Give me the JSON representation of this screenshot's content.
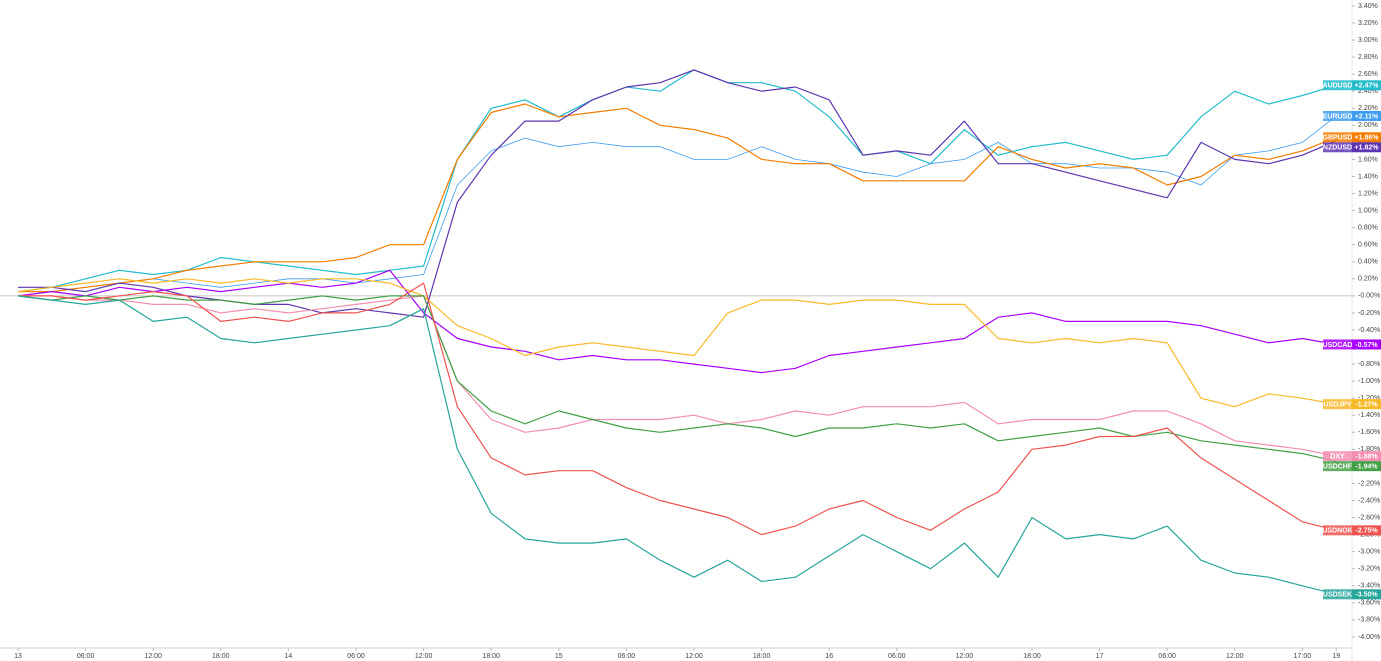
{
  "chart_data": {
    "type": "line",
    "categories": [
      "13",
      null,
      "06:00",
      null,
      "12:00",
      null,
      "18:00",
      null,
      "14",
      null,
      "06:00",
      null,
      "12:00",
      null,
      "18:00",
      null,
      "15",
      null,
      "06:00",
      null,
      "12:00",
      null,
      "18:00",
      null,
      "16",
      null,
      "06:00",
      null,
      "12:00",
      null,
      "18:00",
      null,
      "17",
      null,
      "06:00",
      null,
      "12:00",
      null,
      "17:00",
      "19"
    ],
    "ylim": [
      -4.13,
      3.47
    ],
    "yticks": [
      {
        "value": 3.4,
        "label": "3.40%"
      },
      {
        "value": 3.2,
        "label": "3.20%"
      },
      {
        "value": 3.0,
        "label": "3.00%"
      },
      {
        "value": 2.8,
        "label": "2.80%"
      },
      {
        "value": 2.6,
        "label": "2.60%"
      },
      {
        "value": 2.4,
        "label": "2.40%"
      },
      {
        "value": 2.2,
        "label": "2.20%"
      },
      {
        "value": 2.0,
        "label": "2.00%"
      },
      {
        "value": 1.8,
        "label": "1.80%"
      },
      {
        "value": 1.6,
        "label": "1.60%"
      },
      {
        "value": 1.4,
        "label": "1.40%"
      },
      {
        "value": 1.2,
        "label": "1.20%"
      },
      {
        "value": 1.0,
        "label": "1.00%"
      },
      {
        "value": 0.8,
        "label": "0.80%"
      },
      {
        "value": 0.6,
        "label": "0.60%"
      },
      {
        "value": 0.4,
        "label": "0.40%"
      },
      {
        "value": 0.2,
        "label": "0.20%"
      },
      {
        "value": 0,
        "label": "-0.00%"
      },
      {
        "value": -0.2,
        "label": "-0.20%"
      },
      {
        "value": -0.4,
        "label": "-0.40%"
      },
      {
        "value": -0.6,
        "label": "-0.60%"
      },
      {
        "value": -0.8,
        "label": "-0.80%"
      },
      {
        "value": -1.0,
        "label": "-1.00%"
      },
      {
        "value": -1.2,
        "label": "-1.20%"
      },
      {
        "value": -1.4,
        "label": "-1.40%"
      },
      {
        "value": -1.6,
        "label": "-1.60%"
      },
      {
        "value": -1.8,
        "label": "-1.80%"
      },
      {
        "value": -2.0,
        "label": "-2.00%"
      },
      {
        "value": -2.2,
        "label": "-2.20%"
      },
      {
        "value": -2.4,
        "label": "-2.40%"
      },
      {
        "value": -2.6,
        "label": "-2.60%"
      },
      {
        "value": -2.8,
        "label": "-2.80%"
      },
      {
        "value": -3.0,
        "label": "-3.00%"
      },
      {
        "value": -3.2,
        "label": "-3.20%"
      },
      {
        "value": -3.4,
        "label": "-3.40%"
      },
      {
        "value": -3.6,
        "label": "-3.60%"
      },
      {
        "value": -3.8,
        "label": "-3.80%"
      },
      {
        "value": -4.0,
        "label": "-4.00%"
      }
    ],
    "zero_line": true,
    "series": [
      {
        "name": "AUDUSD",
        "color": "#22bccb",
        "values": [
          0.05,
          0.1,
          0.2,
          0.3,
          0.25,
          0.3,
          0.45,
          0.4,
          0.35,
          0.3,
          0.25,
          0.3,
          0.35,
          1.6,
          2.2,
          2.3,
          2.1,
          2.3,
          2.45,
          2.4,
          2.65,
          2.5,
          2.5,
          2.4,
          2.1,
          1.65,
          1.7,
          1.55,
          1.95,
          1.65,
          1.75,
          1.8,
          1.7,
          1.6,
          1.65,
          2.1,
          2.4,
          2.25,
          2.35,
          2.47
        ],
        "value_labels": [
          null,
          null,
          null,
          null,
          null,
          null,
          null,
          null,
          null,
          null,
          null,
          null,
          null,
          null,
          null,
          null,
          null,
          null,
          null,
          null,
          null,
          null,
          null,
          null,
          null,
          null,
          null,
          null,
          null,
          null,
          null,
          null,
          null,
          null,
          null,
          null,
          null,
          null,
          null,
          "+2.47%"
        ]
      },
      {
        "name": "EURUSD",
        "color": "#3d9df0",
        "values": [
          0.0,
          0.05,
          0.1,
          0.15,
          0.2,
          0.15,
          0.1,
          0.15,
          0.2,
          0.2,
          0.15,
          0.2,
          0.25,
          1.3,
          1.7,
          1.85,
          1.75,
          1.8,
          1.75,
          1.75,
          1.6,
          1.6,
          1.75,
          1.6,
          1.55,
          1.45,
          1.4,
          1.55,
          1.6,
          1.8,
          1.55,
          1.55,
          1.5,
          1.5,
          1.45,
          1.3,
          1.65,
          1.7,
          1.8,
          2.11
        ],
        "value_labels": [
          null,
          null,
          null,
          null,
          null,
          null,
          null,
          null,
          null,
          null,
          null,
          null,
          null,
          null,
          null,
          null,
          null,
          null,
          null,
          null,
          null,
          null,
          null,
          null,
          null,
          null,
          null,
          null,
          null,
          null,
          null,
          null,
          null,
          null,
          null,
          null,
          null,
          null,
          null,
          "+2.11%"
        ]
      },
      {
        "name": "GBPUSD",
        "color": "#f57c00",
        "values": [
          0.05,
          0.05,
          0.1,
          0.15,
          0.2,
          0.3,
          0.35,
          0.4,
          0.4,
          0.4,
          0.45,
          0.6,
          0.6,
          1.6,
          2.15,
          2.25,
          2.1,
          2.15,
          2.2,
          2.0,
          1.95,
          1.85,
          1.6,
          1.55,
          1.55,
          1.35,
          1.35,
          1.35,
          1.35,
          1.75,
          1.6,
          1.5,
          1.55,
          1.5,
          1.3,
          1.4,
          1.65,
          1.6,
          1.7,
          1.86
        ],
        "value_labels": [
          null,
          null,
          null,
          null,
          null,
          null,
          null,
          null,
          null,
          null,
          null,
          null,
          null,
          null,
          null,
          null,
          null,
          null,
          null,
          null,
          null,
          null,
          null,
          null,
          null,
          null,
          null,
          null,
          null,
          null,
          null,
          null,
          null,
          null,
          null,
          null,
          null,
          null,
          null,
          "+1.86%"
        ]
      },
      {
        "name": "NZDUSD",
        "color": "#5e35b1",
        "values": [
          0.1,
          0.1,
          0.05,
          0.15,
          0.1,
          0.0,
          -0.05,
          -0.1,
          -0.1,
          -0.2,
          -0.15,
          -0.2,
          -0.25,
          1.1,
          1.65,
          2.05,
          2.05,
          2.3,
          2.45,
          2.5,
          2.65,
          2.5,
          2.4,
          2.45,
          2.3,
          1.65,
          1.7,
          1.65,
          2.05,
          1.55,
          1.55,
          1.45,
          1.35,
          1.25,
          1.15,
          1.8,
          1.6,
          1.55,
          1.65,
          1.82
        ],
        "value_labels": [
          null,
          null,
          null,
          null,
          null,
          null,
          null,
          null,
          null,
          null,
          null,
          null,
          null,
          null,
          null,
          null,
          null,
          null,
          null,
          null,
          null,
          null,
          null,
          null,
          null,
          null,
          null,
          null,
          null,
          null,
          null,
          null,
          null,
          null,
          null,
          null,
          null,
          null,
          null,
          "+1.82%"
        ]
      },
      {
        "name": "USDCAD",
        "color": "#aa00ff",
        "values": [
          0.0,
          0.05,
          0.0,
          0.1,
          0.05,
          0.1,
          0.05,
          0.1,
          0.15,
          0.1,
          0.15,
          0.3,
          -0.2,
          -0.5,
          -0.6,
          -0.65,
          -0.75,
          -0.7,
          -0.75,
          -0.75,
          -0.8,
          -0.85,
          -0.9,
          -0.85,
          -0.7,
          -0.65,
          -0.6,
          -0.55,
          -0.5,
          -0.25,
          -0.2,
          -0.3,
          -0.3,
          -0.3,
          -0.3,
          -0.35,
          -0.45,
          -0.55,
          -0.5,
          -0.57
        ],
        "value_labels": [
          null,
          null,
          null,
          null,
          null,
          null,
          null,
          null,
          null,
          null,
          null,
          null,
          null,
          null,
          null,
          null,
          null,
          null,
          null,
          null,
          null,
          null,
          null,
          null,
          null,
          null,
          null,
          null,
          null,
          null,
          null,
          null,
          null,
          null,
          null,
          null,
          null,
          null,
          null,
          "-0.57%"
        ]
      },
      {
        "name": "USDJPY",
        "color": "#f7b928",
        "values": [
          0.05,
          0.1,
          0.15,
          0.2,
          0.15,
          0.2,
          0.15,
          0.2,
          0.15,
          0.2,
          0.2,
          0.15,
          0.0,
          -0.35,
          -0.5,
          -0.7,
          -0.6,
          -0.55,
          -0.6,
          -0.65,
          -0.7,
          -0.2,
          -0.05,
          -0.05,
          -0.1,
          -0.05,
          -0.05,
          -0.1,
          -0.1,
          -0.5,
          -0.55,
          -0.5,
          -0.55,
          -0.5,
          -0.55,
          -1.2,
          -1.3,
          -1.15,
          -1.2,
          -1.27
        ],
        "value_labels": [
          null,
          null,
          null,
          null,
          null,
          null,
          null,
          null,
          null,
          null,
          null,
          null,
          null,
          null,
          null,
          null,
          null,
          null,
          null,
          null,
          null,
          null,
          null,
          null,
          null,
          null,
          null,
          null,
          null,
          null,
          null,
          null,
          null,
          null,
          null,
          null,
          null,
          null,
          null,
          "-1.27%"
        ]
      },
      {
        "name": "DXY",
        "color": "#f48fb1",
        "values": [
          0.0,
          0.0,
          -0.05,
          -0.05,
          -0.1,
          -0.1,
          -0.2,
          -0.15,
          -0.2,
          -0.15,
          -0.1,
          -0.05,
          0.0,
          -1.0,
          -1.45,
          -1.6,
          -1.55,
          -1.45,
          -1.45,
          -1.45,
          -1.4,
          -1.5,
          -1.45,
          -1.35,
          -1.4,
          -1.3,
          -1.3,
          -1.3,
          -1.25,
          -1.5,
          -1.45,
          -1.45,
          -1.45,
          -1.35,
          -1.35,
          -1.5,
          -1.7,
          -1.75,
          -1.8,
          -1.88
        ],
        "value_labels": [
          null,
          null,
          null,
          null,
          null,
          null,
          null,
          null,
          null,
          null,
          null,
          null,
          null,
          null,
          null,
          null,
          null,
          null,
          null,
          null,
          null,
          null,
          null,
          null,
          null,
          null,
          null,
          null,
          null,
          null,
          null,
          null,
          null,
          null,
          null,
          null,
          null,
          null,
          null,
          "-1.88%"
        ]
      },
      {
        "name": "USDCHF",
        "color": "#43a047",
        "values": [
          0.0,
          -0.05,
          0.0,
          -0.05,
          0.0,
          -0.05,
          -0.05,
          -0.1,
          -0.05,
          0.0,
          -0.05,
          0.0,
          0.0,
          -1.0,
          -1.35,
          -1.5,
          -1.35,
          -1.45,
          -1.55,
          -1.6,
          -1.55,
          -1.5,
          -1.55,
          -1.65,
          -1.55,
          -1.55,
          -1.5,
          -1.55,
          -1.5,
          -1.7,
          -1.65,
          -1.6,
          -1.55,
          -1.65,
          -1.6,
          -1.7,
          -1.75,
          -1.8,
          -1.85,
          -1.94
        ],
        "value_labels": [
          null,
          null,
          null,
          null,
          null,
          null,
          null,
          null,
          null,
          null,
          null,
          null,
          null,
          null,
          null,
          null,
          null,
          null,
          null,
          null,
          null,
          null,
          null,
          null,
          null,
          null,
          null,
          null,
          null,
          null,
          null,
          null,
          null,
          null,
          null,
          null,
          null,
          null,
          null,
          "-1.94%"
        ]
      },
      {
        "name": "USDNOK",
        "color": "#ef5350",
        "values": [
          0.0,
          0.0,
          -0.05,
          0.0,
          0.05,
          0.0,
          -0.3,
          -0.25,
          -0.3,
          -0.2,
          -0.2,
          -0.1,
          0.15,
          -1.3,
          -1.9,
          -2.1,
          -2.05,
          -2.05,
          -2.25,
          -2.4,
          -2.5,
          -2.6,
          -2.8,
          -2.7,
          -2.5,
          -2.4,
          -2.6,
          -2.75,
          -2.5,
          -2.3,
          -1.8,
          -1.75,
          -1.65,
          -1.65,
          -1.55,
          -1.9,
          -2.15,
          -2.4,
          -2.65,
          -2.75
        ],
        "value_labels": [
          null,
          null,
          null,
          null,
          null,
          null,
          null,
          null,
          null,
          null,
          null,
          null,
          null,
          null,
          null,
          null,
          null,
          null,
          null,
          null,
          null,
          null,
          null,
          null,
          null,
          null,
          null,
          null,
          null,
          null,
          null,
          null,
          null,
          null,
          null,
          null,
          null,
          null,
          null,
          "-2.75%"
        ]
      },
      {
        "name": "USDSEK",
        "color": "#26a69a",
        "values": [
          0.0,
          -0.05,
          -0.1,
          -0.05,
          -0.3,
          -0.25,
          -0.5,
          -0.55,
          -0.5,
          -0.45,
          -0.4,
          -0.35,
          -0.15,
          -1.8,
          -2.55,
          -2.85,
          -2.9,
          -2.9,
          -2.85,
          -3.1,
          -3.3,
          -3.1,
          -3.35,
          -3.3,
          -3.05,
          -2.8,
          -3.0,
          -3.2,
          -2.9,
          -3.3,
          -2.6,
          -2.85,
          -2.8,
          -2.85,
          -2.7,
          -3.1,
          -3.25,
          -3.3,
          -3.4,
          -3.5
        ],
        "value_labels": [
          null,
          null,
          null,
          null,
          null,
          null,
          null,
          null,
          null,
          null,
          null,
          null,
          null,
          null,
          null,
          null,
          null,
          null,
          null,
          null,
          null,
          null,
          null,
          null,
          null,
          null,
          null,
          null,
          null,
          null,
          null,
          null,
          null,
          null,
          null,
          null,
          null,
          null,
          null,
          "-3.50%"
        ]
      }
    ]
  }
}
